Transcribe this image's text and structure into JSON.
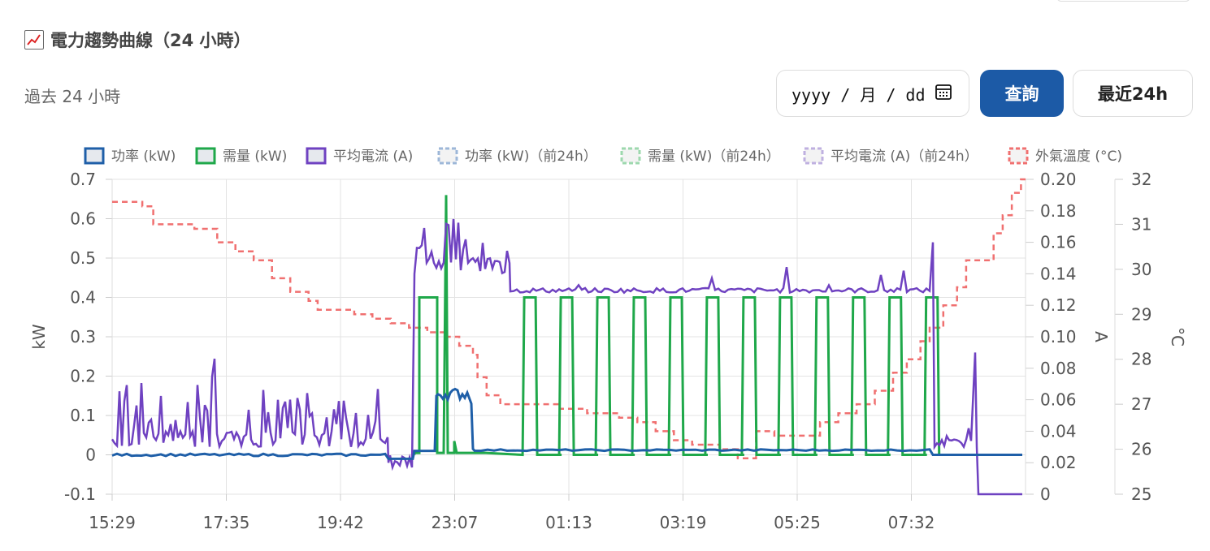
{
  "header": {
    "title": "電力趨勢曲線（24 小時）",
    "subtitle": "過去 24 小時"
  },
  "controls": {
    "date_placeholder": "yyyy / 月 / dd",
    "query_label": "查詢",
    "recent_label": "最近24h"
  },
  "chart_data": {
    "type": "line",
    "legend_position": "top",
    "grid": true,
    "x_ticks": [
      "15:29",
      "17:35",
      "19:42",
      "23:07",
      "01:13",
      "03:19",
      "05:25",
      "07:32"
    ],
    "axes": {
      "y_left": {
        "label": "kW",
        "min": -0.1,
        "max": 0.7,
        "ticks": [
          "-0.1",
          "0",
          "0.1",
          "0.2",
          "0.3",
          "0.4",
          "0.5",
          "0.6",
          "0.7"
        ]
      },
      "y_right_a": {
        "label": "A",
        "min": 0,
        "max": 0.2,
        "ticks": [
          "0",
          "0.02",
          "0.04",
          "0.06",
          "0.08",
          "0.10",
          "0.12",
          "0.14",
          "0.16",
          "0.18",
          "0.20"
        ]
      },
      "y_right_c": {
        "label": "°C",
        "min": 25,
        "max": 32,
        "ticks": [
          "25",
          "26",
          "27",
          "28",
          "29",
          "30",
          "31",
          "32"
        ]
      }
    },
    "series": [
      {
        "name": "功率 (kW)",
        "color": "#1f5fa8",
        "style": "solid",
        "axis": "y_left"
      },
      {
        "name": "需量 (kW)",
        "color": "#1fa84a",
        "style": "solid",
        "axis": "y_left"
      },
      {
        "name": "平均電流 (A)",
        "color": "#6f42c1",
        "style": "solid",
        "axis": "y_right_a"
      },
      {
        "name": "功率 (kW)（前24h）",
        "color": "#9db7d8",
        "style": "dashed",
        "axis": "y_left"
      },
      {
        "name": "需量 (kW)（前24h）",
        "color": "#9dd8ae",
        "style": "dashed",
        "axis": "y_left"
      },
      {
        "name": "平均電流 (A)（前24h）",
        "color": "#bfb0e0",
        "style": "dashed",
        "axis": "y_right_a"
      },
      {
        "name": "外氣溫度 (°C)",
        "color": "#f07070",
        "style": "dashed",
        "axis": "y_right_c"
      }
    ],
    "temperature_steps": [
      [
        0.0,
        31.5
      ],
      [
        0.033,
        31.5
      ],
      [
        0.033,
        31.4
      ],
      [
        0.045,
        31.4
      ],
      [
        0.045,
        31.0
      ],
      [
        0.09,
        31.0
      ],
      [
        0.09,
        30.9
      ],
      [
        0.115,
        30.9
      ],
      [
        0.115,
        30.6
      ],
      [
        0.135,
        30.6
      ],
      [
        0.135,
        30.4
      ],
      [
        0.155,
        30.4
      ],
      [
        0.155,
        30.2
      ],
      [
        0.175,
        30.2
      ],
      [
        0.175,
        29.8
      ],
      [
        0.195,
        29.8
      ],
      [
        0.195,
        29.5
      ],
      [
        0.215,
        29.5
      ],
      [
        0.215,
        29.3
      ],
      [
        0.225,
        29.3
      ],
      [
        0.225,
        29.1
      ],
      [
        0.265,
        29.1
      ],
      [
        0.265,
        29.0
      ],
      [
        0.285,
        29.0
      ],
      [
        0.285,
        28.9
      ],
      [
        0.305,
        28.9
      ],
      [
        0.305,
        28.8
      ],
      [
        0.325,
        28.8
      ],
      [
        0.325,
        28.7
      ],
      [
        0.345,
        28.7
      ],
      [
        0.345,
        28.6
      ],
      [
        0.365,
        28.6
      ],
      [
        0.365,
        28.5
      ],
      [
        0.38,
        28.5
      ],
      [
        0.38,
        28.3
      ],
      [
        0.395,
        28.3
      ],
      [
        0.395,
        28.1
      ],
      [
        0.4,
        28.1
      ],
      [
        0.4,
        27.6
      ],
      [
        0.41,
        27.6
      ],
      [
        0.41,
        27.2
      ],
      [
        0.425,
        27.2
      ],
      [
        0.425,
        27.0
      ],
      [
        0.49,
        27.0
      ],
      [
        0.49,
        26.9
      ],
      [
        0.52,
        26.9
      ],
      [
        0.52,
        26.8
      ],
      [
        0.555,
        26.8
      ],
      [
        0.555,
        26.7
      ],
      [
        0.575,
        26.7
      ],
      [
        0.575,
        26.6
      ],
      [
        0.595,
        26.6
      ],
      [
        0.595,
        26.4
      ],
      [
        0.615,
        26.4
      ],
      [
        0.615,
        26.2
      ],
      [
        0.635,
        26.2
      ],
      [
        0.635,
        26.1
      ],
      [
        0.665,
        26.1
      ],
      [
        0.665,
        26.0
      ],
      [
        0.685,
        26.0
      ],
      [
        0.685,
        25.8
      ],
      [
        0.705,
        25.8
      ],
      [
        0.705,
        26.4
      ],
      [
        0.725,
        26.4
      ],
      [
        0.725,
        26.3
      ],
      [
        0.775,
        26.3
      ],
      [
        0.775,
        26.6
      ],
      [
        0.795,
        26.6
      ],
      [
        0.795,
        26.8
      ],
      [
        0.815,
        26.8
      ],
      [
        0.815,
        27.0
      ],
      [
        0.835,
        27.0
      ],
      [
        0.835,
        27.3
      ],
      [
        0.855,
        27.3
      ],
      [
        0.855,
        27.7
      ],
      [
        0.87,
        27.7
      ],
      [
        0.87,
        28.0
      ],
      [
        0.885,
        28.0
      ],
      [
        0.885,
        28.4
      ],
      [
        0.895,
        28.4
      ],
      [
        0.895,
        28.7
      ],
      [
        0.91,
        28.7
      ],
      [
        0.91,
        29.2
      ],
      [
        0.925,
        29.2
      ],
      [
        0.925,
        29.6
      ],
      [
        0.935,
        29.6
      ],
      [
        0.935,
        30.2
      ],
      [
        0.965,
        30.2
      ],
      [
        0.965,
        30.8
      ],
      [
        0.975,
        30.8
      ],
      [
        0.975,
        31.2
      ],
      [
        0.985,
        31.2
      ],
      [
        0.985,
        31.7
      ],
      [
        0.995,
        31.7
      ],
      [
        0.995,
        32.0
      ],
      [
        1.0,
        32.0
      ]
    ],
    "demand_cycles_start": [
      0.4,
      0.445,
      0.485,
      0.525,
      0.565,
      0.605,
      0.645,
      0.685,
      0.725,
      0.765,
      0.805,
      0.845,
      0.885,
      0.925
    ],
    "demand_level_kw": 0.4,
    "power_levels": {
      "base": 0.0,
      "night": 0.01,
      "peak": 0.15
    }
  }
}
